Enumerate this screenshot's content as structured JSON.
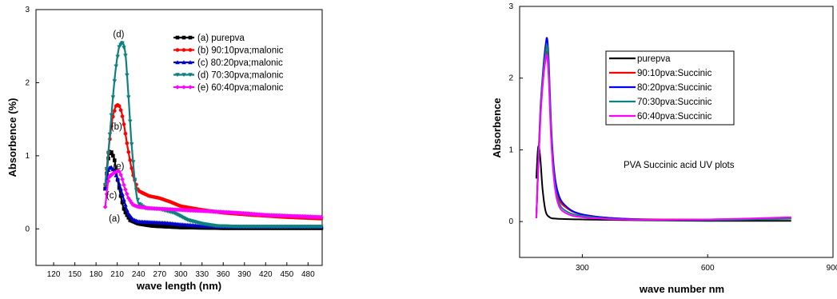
{
  "chart_data": [
    {
      "type": "line",
      "xlabel": "wave length (nm)",
      "ylabel": "Absorbence (%)",
      "xlim": [
        95,
        500
      ],
      "ylim": [
        -0.5,
        3
      ],
      "x_ticks": [
        "120",
        "150",
        "180",
        "210",
        "240",
        "270",
        "300",
        "330",
        "360",
        "390",
        "420",
        "450",
        "480"
      ],
      "x_tick_values": [
        120,
        150,
        180,
        210,
        240,
        270,
        300,
        330,
        360,
        390,
        420,
        450,
        480
      ],
      "y_ticks": [
        "0",
        "1",
        "2",
        "3"
      ],
      "y_tick_values": [
        0,
        1,
        2,
        3
      ],
      "legend_position": "top-right",
      "series": [
        {
          "name": "(a) purepva",
          "label": "(a)",
          "color": "#000000",
          "marker": "square",
          "x": [
            193,
            198,
            202,
            206,
            210,
            215,
            220,
            228,
            240,
            260,
            300,
            360,
            420,
            500
          ],
          "y": [
            0.55,
            1.02,
            1.05,
            0.95,
            0.7,
            0.45,
            0.25,
            0.12,
            0.07,
            0.04,
            0.02,
            0.01,
            0.01,
            0.01
          ]
        },
        {
          "name": "(b) 90:10pva;malonic",
          "label": "(b)",
          "color": "#ff0000",
          "marker": "circle",
          "x": [
            193,
            198,
            203,
            208,
            212,
            216,
            220,
            225,
            232,
            240,
            255,
            270,
            285,
            300,
            330,
            360,
            400,
            450,
            500
          ],
          "y": [
            0.6,
            1.1,
            1.5,
            1.68,
            1.7,
            1.6,
            1.4,
            1.1,
            0.75,
            0.52,
            0.45,
            0.42,
            0.37,
            0.31,
            0.26,
            0.22,
            0.19,
            0.16,
            0.14
          ]
        },
        {
          "name": "(c) 80:20pva;malonic",
          "label": "(c)",
          "color": "#0000cc",
          "marker": "triangle",
          "x": [
            193,
            197,
            201,
            205,
            210,
            215,
            220,
            225,
            232,
            240,
            260,
            280,
            300,
            330,
            360,
            420,
            500
          ],
          "y": [
            0.55,
            0.8,
            0.85,
            0.8,
            0.7,
            0.55,
            0.38,
            0.22,
            0.13,
            0.1,
            0.09,
            0.08,
            0.06,
            0.04,
            0.03,
            0.03,
            0.03
          ]
        },
        {
          "name": "(d) 70:30pva;malonic",
          "label": "(d)",
          "color": "#0e8080",
          "marker": "triangle-down",
          "x": [
            193,
            198,
            203,
            208,
            213,
            218,
            222,
            226,
            230,
            235,
            240,
            250,
            270,
            290,
            310,
            330,
            350,
            380,
            420,
            500
          ],
          "y": [
            0.6,
            1.1,
            1.7,
            2.2,
            2.5,
            2.55,
            2.35,
            1.8,
            1.2,
            0.65,
            0.35,
            0.28,
            0.27,
            0.22,
            0.12,
            0.07,
            0.04,
            0.03,
            0.03,
            0.03
          ]
        },
        {
          "name": "(e) 60:40pva;malonic",
          "label": "(e)",
          "color": "#ff00ff",
          "marker": "diamond",
          "x": [
            193,
            198,
            203,
            208,
            212,
            216,
            220,
            226,
            232,
            240,
            260,
            300,
            340,
            380,
            420,
            500
          ],
          "y": [
            0.3,
            0.7,
            0.75,
            0.78,
            0.8,
            0.72,
            0.58,
            0.42,
            0.33,
            0.3,
            0.28,
            0.26,
            0.24,
            0.22,
            0.19,
            0.16
          ]
        }
      ],
      "annotations": [
        {
          "text": "(a)",
          "x": 206,
          "y": 0.1
        },
        {
          "text": "(b)",
          "x": 209,
          "y": 1.36
        },
        {
          "text": "(c)",
          "x": 202,
          "y": 0.42
        },
        {
          "text": "(d)",
          "x": 212,
          "y": 2.62
        },
        {
          "text": "(e)",
          "x": 212,
          "y": 0.82
        }
      ]
    },
    {
      "type": "line",
      "xlabel": "wave number nm",
      "ylabel": "Absorbence",
      "xlim": [
        150,
        900
      ],
      "ylim": [
        -0.5,
        3
      ],
      "x_ticks": [
        "300",
        "600",
        "900"
      ],
      "x_tick_values": [
        300,
        600,
        900
      ],
      "y_ticks": [
        "0",
        "1",
        "2",
        "3"
      ],
      "y_tick_values": [
        0,
        1,
        2,
        3
      ],
      "legend_position": "upper-middle",
      "text_annotation": "PVA Succinic acid UV plots",
      "series": [
        {
          "name": "purepva",
          "color": "#000000",
          "x": [
            190,
            193,
            196,
            200,
            205,
            212,
            222,
            240,
            300,
            400,
            600,
            800
          ],
          "y": [
            0.6,
            0.95,
            1.05,
            0.85,
            0.45,
            0.15,
            0.06,
            0.04,
            0.03,
            0.02,
            0.01,
            0.01
          ]
        },
        {
          "name": "90:10pva:Succinic",
          "color": "#ff0000",
          "x": [
            190,
            195,
            200,
            206,
            212,
            216,
            220,
            225,
            232,
            242,
            260,
            300,
            400,
            600,
            800
          ],
          "y": [
            0.05,
            0.8,
            1.5,
            2.0,
            2.3,
            2.35,
            2.0,
            1.3,
            0.7,
            0.35,
            0.2,
            0.1,
            0.04,
            0.03,
            0.05
          ]
        },
        {
          "name": "80:20pva:Succinic",
          "color": "#0000ff",
          "x": [
            190,
            195,
            200,
            206,
            212,
            216,
            220,
            225,
            232,
            242,
            260,
            300,
            400,
            600,
            800
          ],
          "y": [
            0.05,
            0.9,
            1.6,
            2.1,
            2.45,
            2.55,
            2.2,
            1.4,
            0.75,
            0.4,
            0.22,
            0.1,
            0.04,
            0.02,
            0.05
          ]
        },
        {
          "name": "70:30pva:Succinic",
          "color": "#0e8080",
          "x": [
            190,
            195,
            200,
            206,
            212,
            216,
            220,
            225,
            232,
            242,
            260,
            300,
            400,
            600,
            800
          ],
          "y": [
            0.05,
            0.85,
            1.55,
            2.05,
            2.35,
            2.45,
            2.1,
            1.3,
            0.65,
            0.3,
            0.15,
            0.08,
            0.03,
            0.02,
            0.04
          ]
        },
        {
          "name": "60:40pva:Succinic",
          "color": "#ff00ff",
          "x": [
            190,
            195,
            200,
            206,
            212,
            216,
            220,
            225,
            232,
            242,
            260,
            300,
            400,
            600,
            800
          ],
          "y": [
            0.05,
            0.8,
            1.45,
            1.95,
            2.25,
            2.3,
            1.95,
            1.2,
            0.6,
            0.25,
            0.12,
            0.06,
            0.03,
            0.03,
            0.06
          ]
        }
      ]
    }
  ]
}
